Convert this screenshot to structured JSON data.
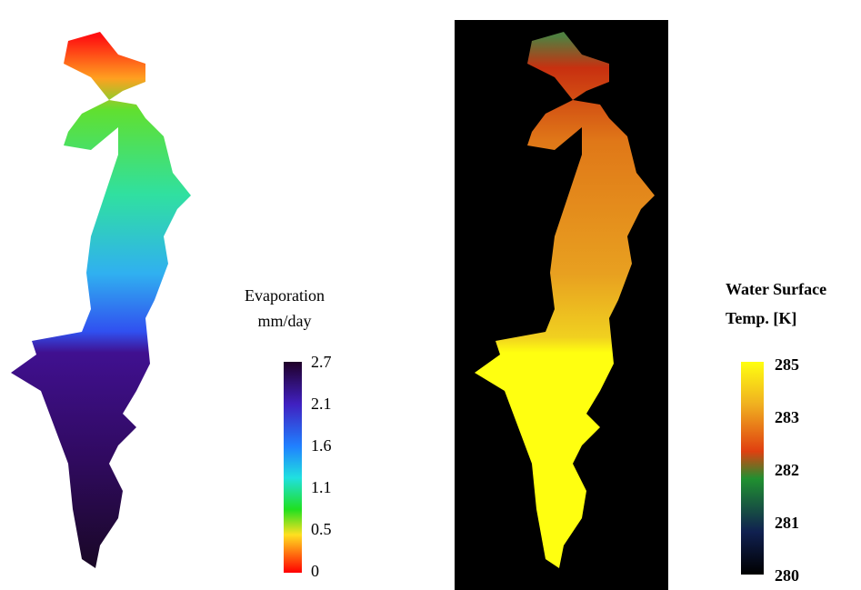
{
  "panels": [
    {
      "legend": {
        "title": "Evaporation",
        "unit": "mm/day",
        "labels": [
          "2.7",
          "2.1",
          "1.6",
          "1.1",
          "0.5",
          "0"
        ]
      }
    },
    {
      "legend": {
        "title": "Water Surface",
        "unit": "Temp. [K]",
        "labels": [
          "285",
          "283",
          "282",
          "281",
          "280"
        ]
      }
    }
  ]
}
